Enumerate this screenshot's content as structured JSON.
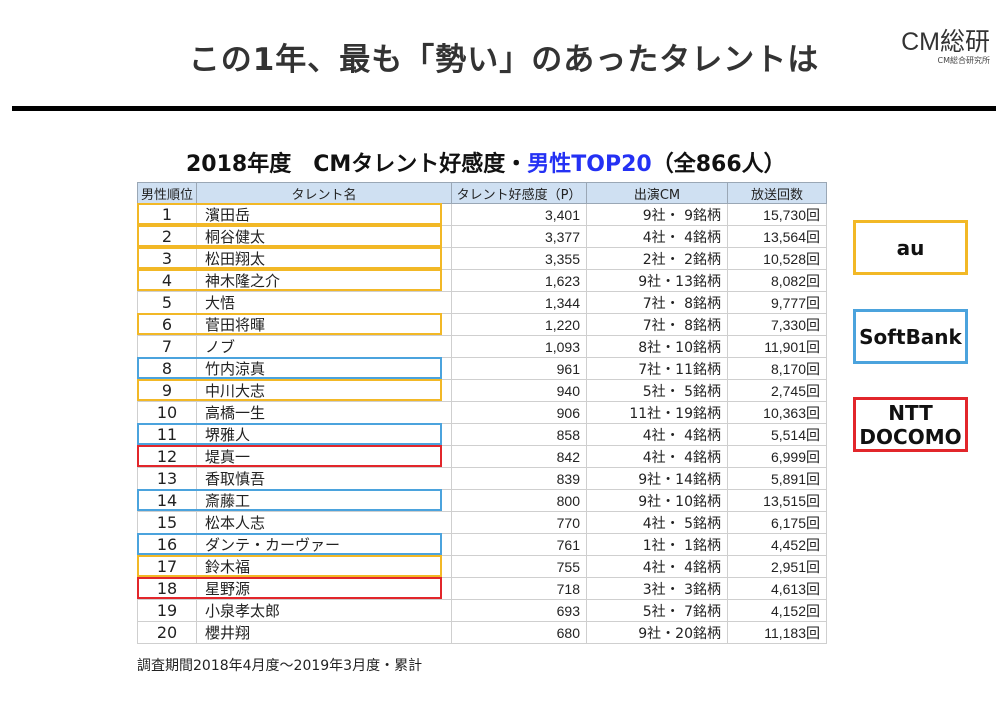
{
  "header": {
    "headline": "この1年、最も「勢い」のあったタレントは",
    "logo_main": "CM総研",
    "logo_sub": "CM総合研究所"
  },
  "subtitle": {
    "prefix": "2018年度　CMタレント好感度・",
    "highlight": "男性TOP20",
    "suffix": "（全866人）",
    "highlight_color": "#2431f4"
  },
  "table": {
    "headers": [
      "男性順位",
      "タレント名",
      "タレント好感度（P）",
      "出演CM",
      "放送回数"
    ],
    "rows": [
      {
        "rank": "1",
        "name": "濱田岳",
        "score": "3,401",
        "cm": "9社・ 9銘柄",
        "plays": "15,730回",
        "carrier": "au"
      },
      {
        "rank": "2",
        "name": "桐谷健太",
        "score": "3,377",
        "cm": "4社・ 4銘柄",
        "plays": "13,564回",
        "carrier": "au"
      },
      {
        "rank": "3",
        "name": "松田翔太",
        "score": "3,355",
        "cm": "2社・ 2銘柄",
        "plays": "10,528回",
        "carrier": "au"
      },
      {
        "rank": "4",
        "name": "神木隆之介",
        "score": "1,623",
        "cm": "9社・13銘柄",
        "plays": "8,082回",
        "carrier": "au"
      },
      {
        "rank": "5",
        "name": "大悟",
        "score": "1,344",
        "cm": "7社・ 8銘柄",
        "plays": "9,777回",
        "carrier": ""
      },
      {
        "rank": "6",
        "name": "菅田将暉",
        "score": "1,220",
        "cm": "7社・ 8銘柄",
        "plays": "7,330回",
        "carrier": "au"
      },
      {
        "rank": "7",
        "name": "ノブ",
        "score": "1,093",
        "cm": "8社・10銘柄",
        "plays": "11,901回",
        "carrier": ""
      },
      {
        "rank": "8",
        "name": "竹内涼真",
        "score": "961",
        "cm": "7社・11銘柄",
        "plays": "8,170回",
        "carrier": "SoftBank"
      },
      {
        "rank": "9",
        "name": "中川大志",
        "score": "940",
        "cm": "5社・ 5銘柄",
        "plays": "2,745回",
        "carrier": "au"
      },
      {
        "rank": "10",
        "name": "高橋一生",
        "score": "906",
        "cm": "11社・19銘柄",
        "plays": "10,363回",
        "carrier": ""
      },
      {
        "rank": "11",
        "name": "堺雅人",
        "score": "858",
        "cm": "4社・ 4銘柄",
        "plays": "5,514回",
        "carrier": "SoftBank"
      },
      {
        "rank": "12",
        "name": "堤真一",
        "score": "842",
        "cm": "4社・ 4銘柄",
        "plays": "6,999回",
        "carrier": "NTT DOCOMO"
      },
      {
        "rank": "13",
        "name": "香取慎吾",
        "score": "839",
        "cm": "9社・14銘柄",
        "plays": "5,891回",
        "carrier": ""
      },
      {
        "rank": "14",
        "name": "斎藤工",
        "score": "800",
        "cm": "9社・10銘柄",
        "plays": "13,515回",
        "carrier": "SoftBank"
      },
      {
        "rank": "15",
        "name": "松本人志",
        "score": "770",
        "cm": "4社・ 5銘柄",
        "plays": "6,175回",
        "carrier": ""
      },
      {
        "rank": "16",
        "name": "ダンテ・カーヴァー",
        "score": "761",
        "cm": "1社・ 1銘柄",
        "plays": "4,452回",
        "carrier": "SoftBank"
      },
      {
        "rank": "17",
        "name": "鈴木福",
        "score": "755",
        "cm": "4社・ 4銘柄",
        "plays": "2,951回",
        "carrier": "au"
      },
      {
        "rank": "18",
        "name": "星野源",
        "score": "718",
        "cm": "3社・ 3銘柄",
        "plays": "4,613回",
        "carrier": "NTT DOCOMO"
      },
      {
        "rank": "19",
        "name": "小泉孝太郎",
        "score": "693",
        "cm": "5社・ 7銘柄",
        "plays": "4,152回",
        "carrier": ""
      },
      {
        "rank": "20",
        "name": "櫻井翔",
        "score": "680",
        "cm": "9社・20銘柄",
        "plays": "11,183回",
        "carrier": ""
      }
    ]
  },
  "footnote": "調査期間2018年4月度〜2019年3月度・累計",
  "legend": [
    {
      "line1": "au",
      "line2": "",
      "color": "#f2b826"
    },
    {
      "line1": "SoftBank",
      "line2": "",
      "color": "#4ba3dd"
    },
    {
      "line1": "NTT",
      "line2": "DOCOMO",
      "color": "#e2262b"
    }
  ],
  "colors": {
    "au": "#f2b826",
    "SoftBank": "#4ba3dd",
    "NTT DOCOMO": "#e2262b",
    "header_bg": "#cfe0f2"
  }
}
